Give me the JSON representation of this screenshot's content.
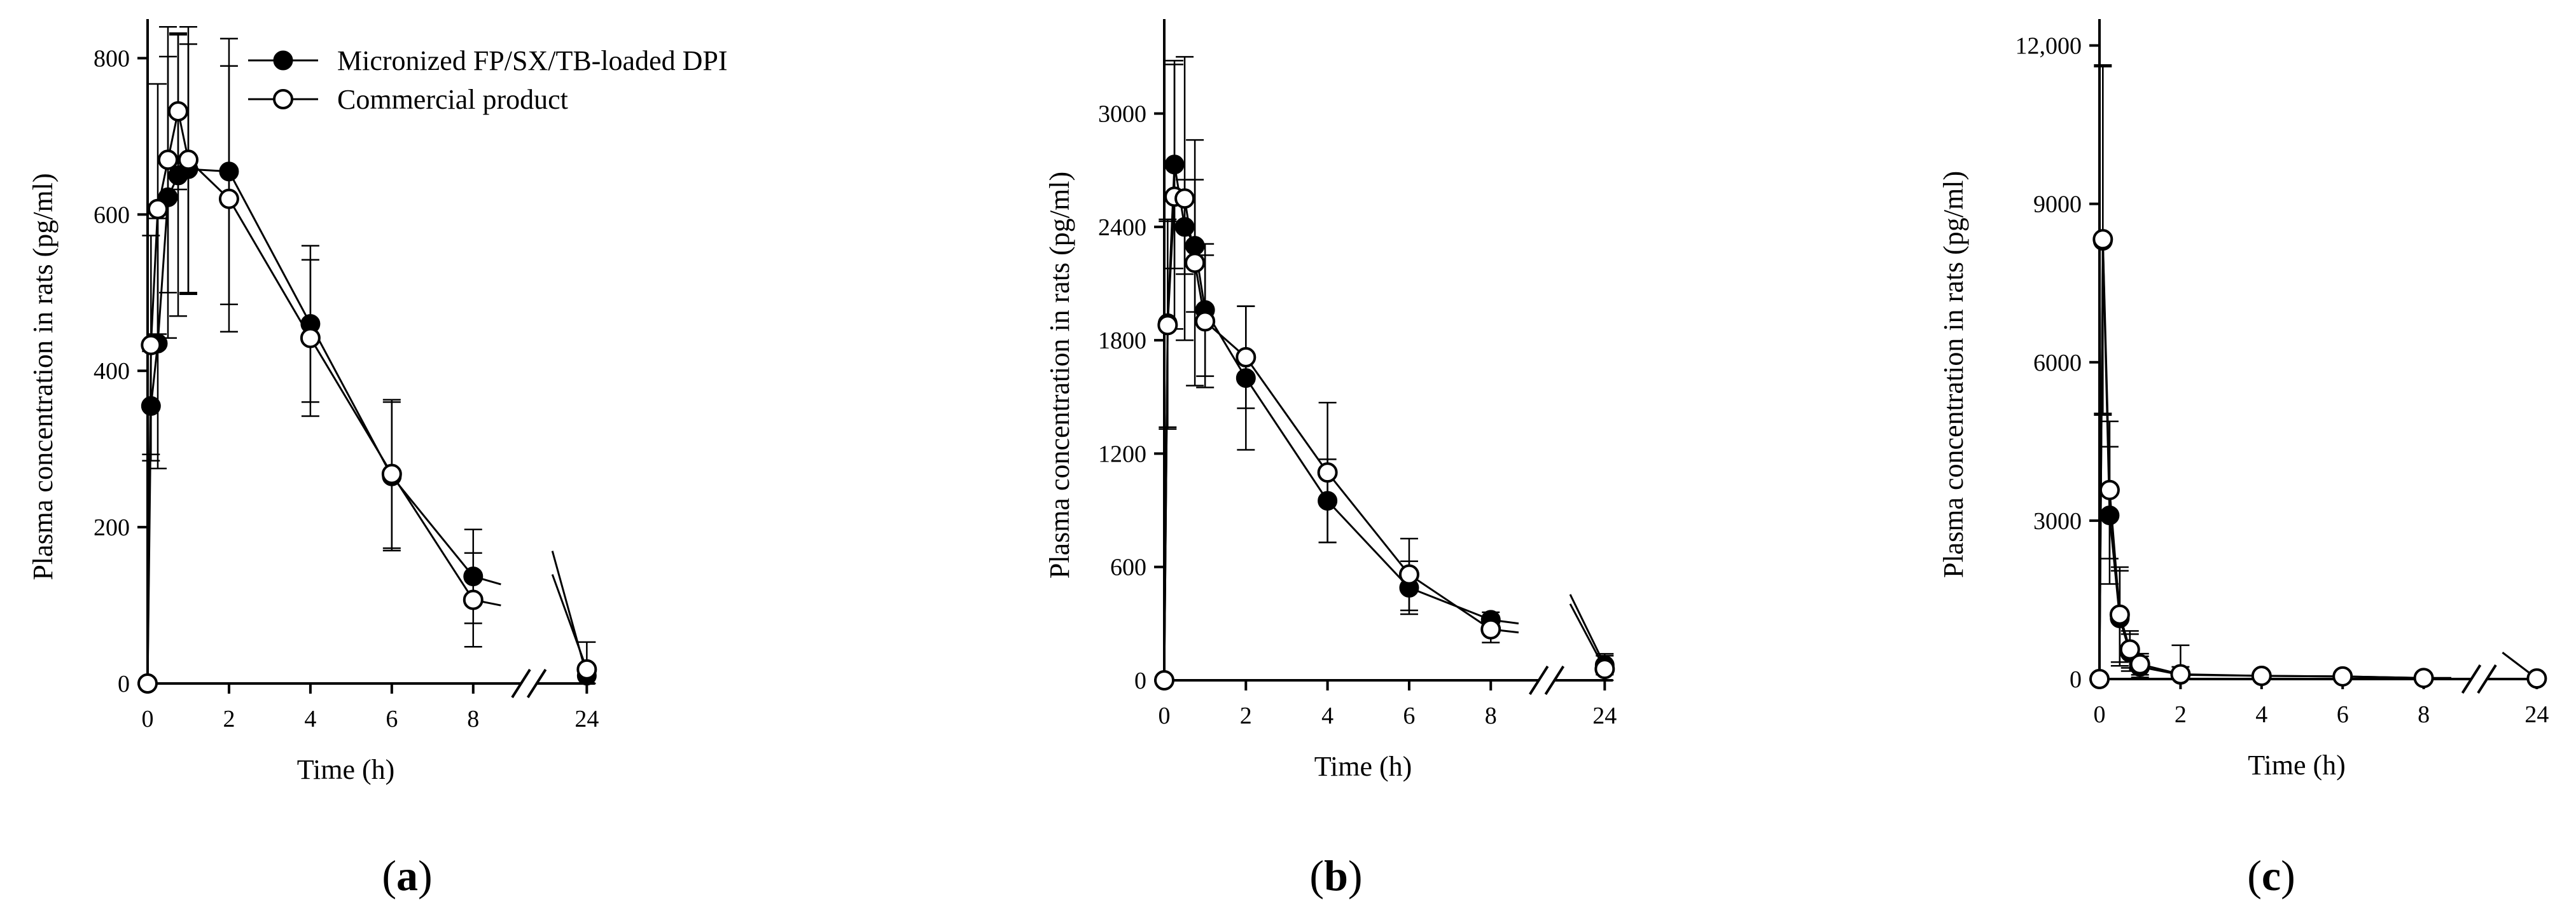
{
  "figure": {
    "legend": [
      {
        "label": "Micronized FP/SX/TB-loaded DPI",
        "marker": "filled-circle"
      },
      {
        "label": "Commercial product",
        "marker": "open-circle"
      }
    ]
  },
  "chart_data": [
    {
      "id": "a",
      "type": "line",
      "caption_open": "(",
      "caption_letter": "a",
      "caption_close": ")",
      "xlabel": "Time (h)",
      "ylabel": "Plasma concentration in rats (pg/ml)",
      "ylim": [
        0,
        850
      ],
      "yticks": [
        0,
        200,
        400,
        600,
        800
      ],
      "ytick_labels": [
        "0",
        "200",
        "400",
        "600",
        "800"
      ],
      "xticks": [
        0,
        2,
        4,
        6,
        8,
        24
      ],
      "xtick_labels": [
        "0",
        "2",
        "4",
        "6",
        "8",
        "24"
      ],
      "axis_break": "between 8 and 24 h",
      "show_legend": true,
      "series": [
        {
          "name": "Micronized FP/SX/TB-loaded DPI",
          "marker": "filled",
          "x": [
            0,
            0.083,
            0.25,
            0.5,
            0.75,
            1,
            2,
            4,
            6,
            8,
            24
          ],
          "y": [
            0,
            355,
            435,
            622,
            650,
            658,
            655,
            460,
            265,
            137,
            10
          ],
          "err": [
            0,
            70,
            160,
            180,
            180,
            160,
            170,
            100,
            95,
            60,
            10
          ]
        },
        {
          "name": "Commercial product",
          "marker": "open",
          "x": [
            0,
            0.083,
            0.25,
            0.5,
            0.75,
            1,
            2,
            4,
            6,
            8,
            24
          ],
          "y": [
            0,
            433,
            607,
            670,
            732,
            670,
            620,
            442,
            268,
            107,
            18
          ],
          "err": [
            0,
            140,
            160,
            170,
            100,
            170,
            170,
            100,
            95,
            60,
            35
          ]
        }
      ]
    },
    {
      "id": "b",
      "type": "line",
      "caption_open": "(",
      "caption_letter": "b",
      "caption_close": ")",
      "xlabel": "Time (h)",
      "ylabel": "Plasma concentration in rats (pg/ml)",
      "ylim": [
        0,
        3500
      ],
      "yticks": [
        0,
        600,
        1200,
        1800,
        2400,
        3000
      ],
      "ytick_labels": [
        "0",
        "600",
        "1200",
        "1800",
        "2400",
        "3000"
      ],
      "xticks": [
        0,
        2,
        4,
        6,
        8,
        24
      ],
      "xtick_labels": [
        "0",
        "2",
        "4",
        "6",
        "8",
        "24"
      ],
      "axis_break": "between 8 and 24 h",
      "show_legend": false,
      "series": [
        {
          "name": "Micronized FP/SX/TB-loaded DPI",
          "marker": "filled",
          "x": [
            0,
            0.083,
            0.25,
            0.5,
            0.75,
            1,
            2,
            4,
            6,
            8,
            24
          ],
          "y": [
            0,
            1890,
            2730,
            2400,
            2300,
            1960,
            1600,
            950,
            490,
            320,
            80
          ],
          "err": [
            0,
            550,
            550,
            250,
            350,
            350,
            380,
            220,
            140,
            40,
            50
          ]
        },
        {
          "name": "Commercial product",
          "marker": "open",
          "x": [
            0,
            0.083,
            0.25,
            0.5,
            0.75,
            1,
            2,
            4,
            6,
            8,
            24
          ],
          "y": [
            0,
            1880,
            2560,
            2550,
            2210,
            1900,
            1710,
            1100,
            560,
            270,
            60
          ],
          "err": [
            0,
            550,
            700,
            750,
            650,
            350,
            270,
            370,
            190,
            70,
            80
          ]
        }
      ]
    },
    {
      "id": "c",
      "type": "line",
      "caption_open": "(",
      "caption_letter": "c",
      "caption_close": ")",
      "xlabel": "Time (h)",
      "ylabel": "Plasma concentration in rats (pg/ml)",
      "ylim": [
        0,
        12500
      ],
      "yticks": [
        0,
        3000,
        6000,
        9000,
        12000
      ],
      "ytick_labels": [
        "0",
        "3000",
        "6000",
        "9000",
        "12,000"
      ],
      "xticks": [
        0,
        2,
        4,
        6,
        8,
        24
      ],
      "xtick_labels": [
        "0",
        "2",
        "4",
        "6",
        "8",
        "24"
      ],
      "axis_break": "between 8 and 24 h",
      "show_legend": false,
      "series": [
        {
          "name": "Micronized FP/SX/TB-loaded DPI",
          "marker": "filled",
          "x": [
            0,
            0.083,
            0.25,
            0.5,
            0.75,
            1,
            2,
            4,
            6,
            8,
            24
          ],
          "y": [
            0,
            8300,
            3100,
            1150,
            500,
            230,
            80,
            60,
            50,
            20,
            10
          ],
          "err": [
            0,
            3300,
            1300,
            900,
            350,
            200,
            150,
            60,
            30,
            20,
            10
          ]
        },
        {
          "name": "Commercial product",
          "marker": "open",
          "x": [
            0,
            0.083,
            0.25,
            0.5,
            0.75,
            1,
            2,
            4,
            6,
            8,
            24
          ],
          "y": [
            0,
            8330,
            3580,
            1220,
            560,
            280,
            90,
            60,
            50,
            20,
            10
          ],
          "err": [
            0,
            3300,
            1300,
            900,
            350,
            200,
            550,
            60,
            30,
            20,
            10
          ]
        }
      ]
    }
  ]
}
